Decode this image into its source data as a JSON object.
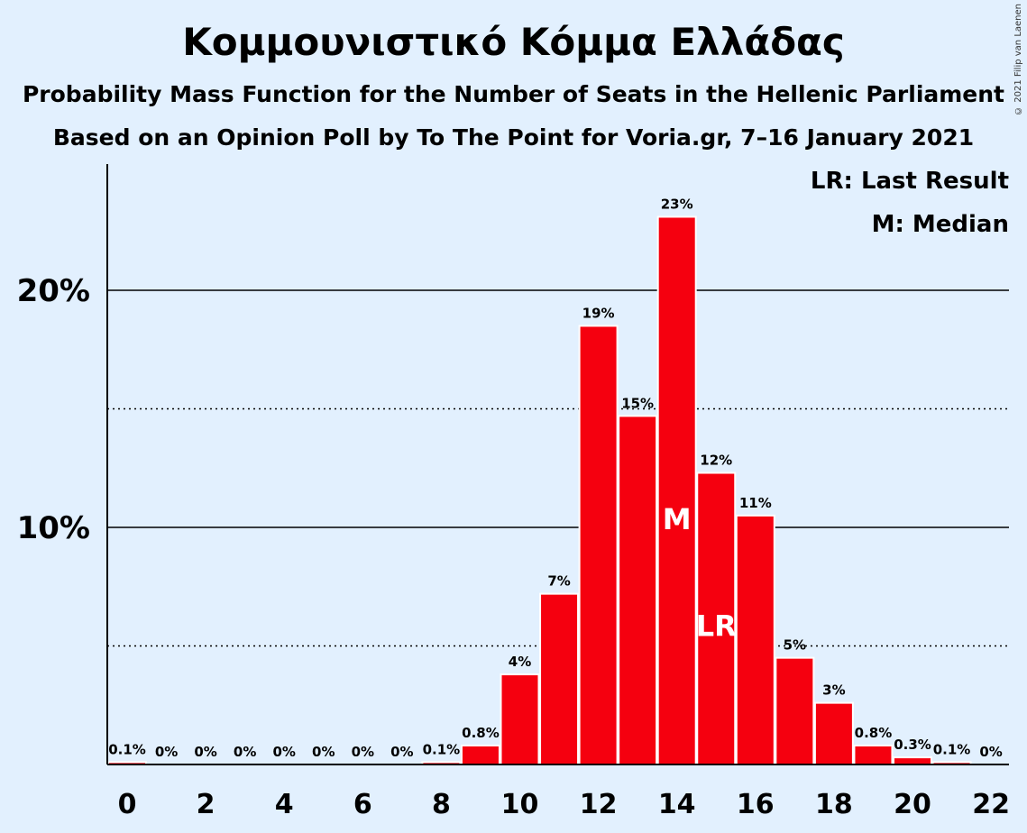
{
  "header": {
    "title": "Κομμουνιστικό Κόμμα Ελλάδας",
    "subtitle1": "Probability Mass Function for the Number of Seats in the Hellenic Parliament",
    "subtitle2": "Based on an Opinion Poll by To The Point for Voria.gr, 7–16 January 2021",
    "copyright": "© 2021 Filip van Laenen"
  },
  "legend": {
    "last_result": "LR: Last Result",
    "median": "M: Median"
  },
  "colors": {
    "background": "#e2f0fe",
    "bar": "#f5000f",
    "bar_stroke": "#ffffff",
    "marker_text": "#ffffff"
  },
  "chart_data": {
    "type": "bar",
    "title": "Κομμουνιστικό Κόμμα Ελλάδας",
    "xlabel": "",
    "ylabel": "",
    "x": [
      0,
      1,
      2,
      3,
      4,
      5,
      6,
      7,
      8,
      9,
      10,
      11,
      12,
      13,
      14,
      15,
      16,
      17,
      18,
      19,
      20,
      21,
      22
    ],
    "values": [
      0.1,
      0,
      0,
      0,
      0,
      0,
      0,
      0,
      0.1,
      0.8,
      3.8,
      7.2,
      18.5,
      14.7,
      23.1,
      12.3,
      10.5,
      4.5,
      2.6,
      0.8,
      0.3,
      0.1,
      0
    ],
    "labels": [
      "0.1%",
      "0%",
      "0%",
      "0%",
      "0%",
      "0%",
      "0%",
      "0%",
      "0.1%",
      "0.8%",
      "4%",
      "7%",
      "19%",
      "15%",
      "23%",
      "12%",
      "11%",
      "5%",
      "3%",
      "0.8%",
      "0.3%",
      "0.1%",
      "0%"
    ],
    "x_ticks": [
      "0",
      "2",
      "4",
      "6",
      "8",
      "10",
      "12",
      "14",
      "16",
      "18",
      "20",
      "22"
    ],
    "y_ticks": [
      {
        "value": 10,
        "label": "10%"
      },
      {
        "value": 20,
        "label": "20%"
      }
    ],
    "minor_gridlines": [
      5,
      15
    ],
    "ylim": [
      0,
      25.3
    ],
    "median_seat": 14,
    "median_label": "M",
    "last_result_seat": 15,
    "last_result_label": "LR",
    "grid": true,
    "legend_placement": "top-right"
  }
}
